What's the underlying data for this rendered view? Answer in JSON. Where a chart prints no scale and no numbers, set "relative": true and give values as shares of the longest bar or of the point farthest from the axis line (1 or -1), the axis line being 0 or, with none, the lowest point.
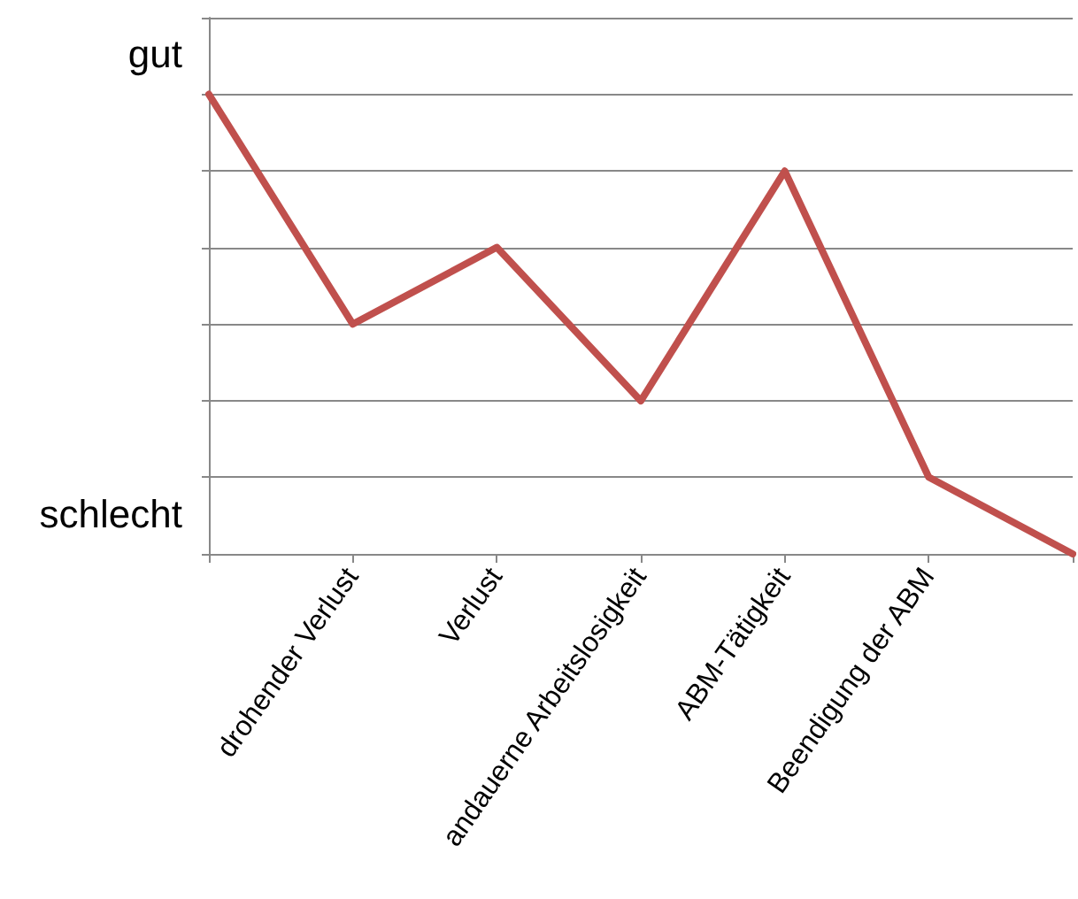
{
  "chart_data": {
    "type": "line",
    "relative": true,
    "categories": [
      null,
      "drohender Verlust",
      "Verlust",
      "andauerne Arbeitslosigkeit",
      "ABM-Tätigkeit",
      "Beendigung der ABM",
      null
    ],
    "series": [
      {
        "color": "#c0504d",
        "values": [
          1,
          0.5,
          0.667,
          0.333,
          0.833,
          0.167,
          0
        ]
      }
    ],
    "annotations": [
      "gut",
      "schlecht"
    ],
    "grid": "y",
    "marker": "none",
    "line_style": "solid"
  }
}
